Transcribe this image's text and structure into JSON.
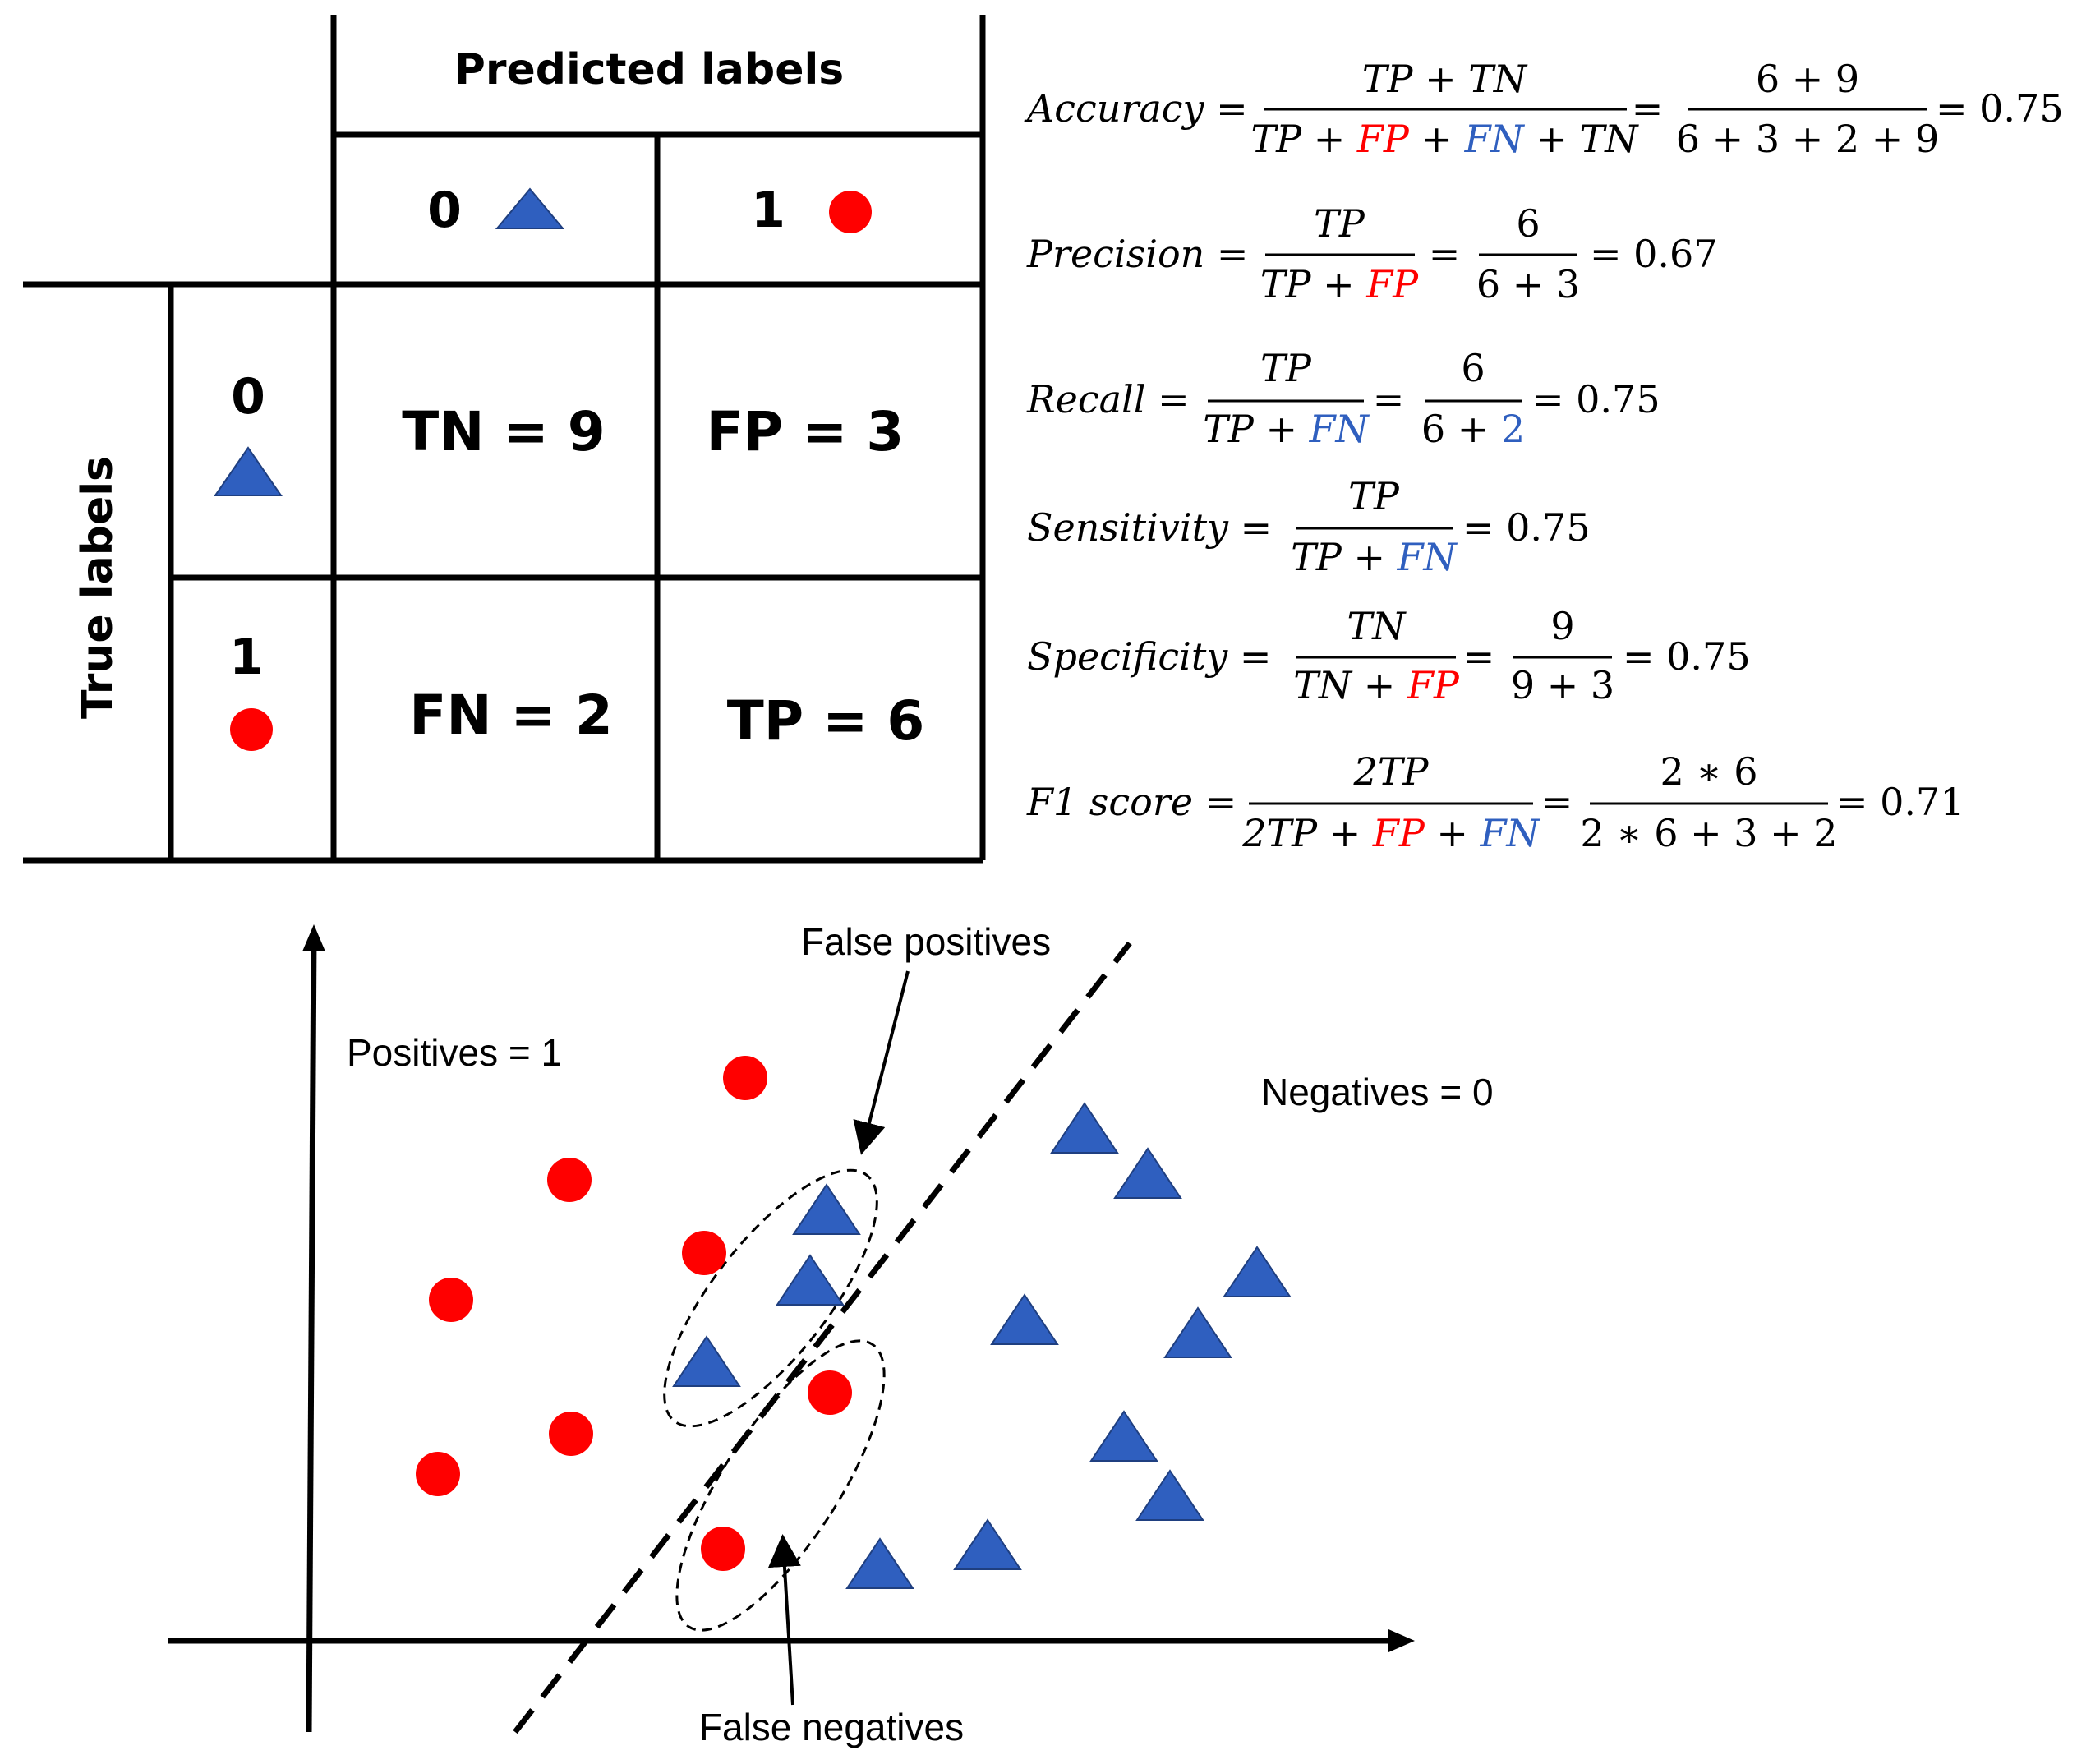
{
  "confusion_matrix": {
    "predicted_header": "Predicted labels",
    "true_header": "True labels",
    "pred_0": "0",
    "pred_1": "1",
    "true_0": "0",
    "true_1": "1",
    "tn": "TN = 9",
    "fp": "FP = 3",
    "fn": "FN = 2",
    "tp": "TP = 6"
  },
  "colors": {
    "positive_circle": "#ff0000",
    "negative_triangle": "#2f5fbf",
    "fp_text": "#ff0000",
    "fn_text": "#2f5fbf"
  },
  "formulas": {
    "accuracy": {
      "name": "Accuracy",
      "num": "TP + TN",
      "den": [
        "TP + ",
        "FP",
        " + ",
        "FN",
        " + TN"
      ],
      "num2": "6 + 9",
      "den2": "6 + 3 + 2 + 9",
      "result": "= 0.75"
    },
    "precision": {
      "name": "Precision",
      "num": "TP",
      "den": [
        "TP + ",
        "FP"
      ],
      "num2": "6",
      "den2": "6 + 3",
      "result": "= 0.67"
    },
    "recall": {
      "name": "Recall",
      "num": "TP",
      "den": [
        "TP + ",
        "FN"
      ],
      "num2": "6",
      "den2": [
        "6 + ",
        "2"
      ],
      "result": "=  0.75"
    },
    "sensitivity": {
      "name": "Sensitivity",
      "num": "TP",
      "den": [
        "TP + ",
        "FN"
      ],
      "result": "= 0.75"
    },
    "specificity": {
      "name": "Specificity",
      "num": "TN",
      "den": [
        "TN + ",
        "FP"
      ],
      "num2": "9",
      "den2": "9 + 3",
      "result": "= 0.75"
    },
    "f1": {
      "name": "F1 score",
      "num": "2TP",
      "den": [
        "2TP + ",
        "FP",
        " + ",
        "FN"
      ],
      "num2": "2 ∗ 6",
      "den2": "2 ∗ 6 + 3 + 2",
      "result": "=  0.71"
    }
  },
  "scatter": {
    "positives_label": "Positives = 1",
    "negatives_label": "Negatives = 0",
    "false_positives_label": "False positives",
    "false_negatives_label": "False negatives"
  }
}
